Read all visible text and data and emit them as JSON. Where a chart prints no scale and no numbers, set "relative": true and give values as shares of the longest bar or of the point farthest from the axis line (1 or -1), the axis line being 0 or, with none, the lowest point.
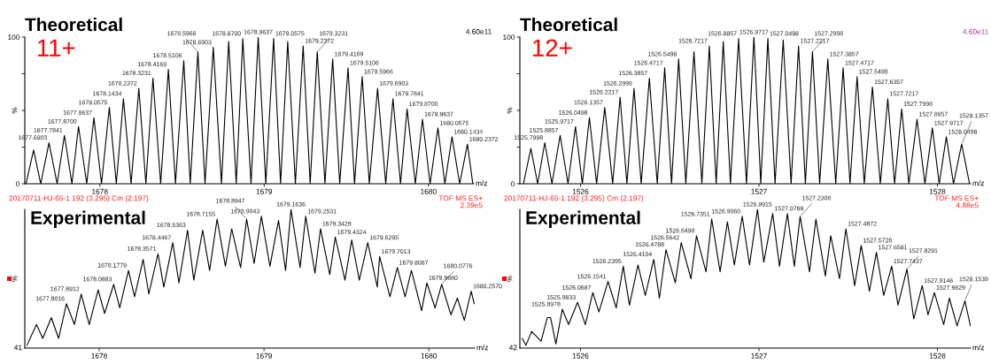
{
  "chart_data": [
    {
      "type": "line",
      "title": "Theoretical",
      "xlabel": "m/z",
      "ylabel": "%",
      "xlim": [
        1677.543,
        1680.276
      ],
      "xticks": [
        1678,
        1679,
        1680
      ],
      "ylim": [
        0,
        100
      ],
      "yticks": [
        0,
        {
          "value": 25,
          "label": null
        },
        {
          "value": 50,
          "label": null
        },
        {
          "value": 75,
          "label": null
        },
        100
      ],
      "annotations": [
        "11+",
        "4.60e11",
        {
          "text": "1677.6903",
          "x": 1677.6903,
          "y": 28
        },
        {
          "text": "1677.7841",
          "x": 1677.7841,
          "y": 33
        },
        {
          "text": "1677.8700",
          "x": 1677.87,
          "y": 39
        },
        {
          "text": "1677.9637",
          "x": 1677.9637,
          "y": 45
        },
        {
          "text": "1678.0575",
          "x": 1678.0575,
          "y": 52
        },
        {
          "text": "1678.1434",
          "x": 1678.1434,
          "y": 58
        },
        {
          "text": "1678.2372",
          "x": 1678.2372,
          "y": 65
        },
        {
          "text": "1678.3231",
          "x": 1678.3231,
          "y": 72
        },
        {
          "text": "1678.4169",
          "x": 1678.4169,
          "y": 78
        },
        {
          "text": "1678.5106",
          "x": 1678.5106,
          "y": 84
        },
        {
          "text": "1678.5966",
          "x": 1678.5966,
          "y": 90
        },
        {
          "text": "1678.6903",
          "x": 1678.6903,
          "y": 93
        },
        {
          "text": "1678.8700",
          "x": 1678.87,
          "y": 99
        },
        {
          "text": "1678.9637",
          "x": 1678.9637,
          "y": 100
        },
        {
          "text": "1679.0575",
          "x": 1679.0575,
          "y": 99
        },
        {
          "text": "1679.2372",
          "x": 1679.2372,
          "y": 94
        },
        {
          "text": "1679.3231",
          "x": 1679.3231,
          "y": 90
        },
        {
          "text": "1679.4169",
          "x": 1679.4169,
          "y": 85
        },
        {
          "text": "1679.5106",
          "x": 1679.5106,
          "y": 79
        },
        {
          "text": "1679.5966",
          "x": 1679.5966,
          "y": 73
        },
        {
          "text": "1679.6903",
          "x": 1679.6903,
          "y": 65
        },
        {
          "text": "1679.7841",
          "x": 1679.7841,
          "y": 58
        },
        {
          "text": "1679.8700",
          "x": 1679.87,
          "y": 51
        },
        {
          "text": "1679.9637",
          "x": 1679.9637,
          "y": 44
        },
        {
          "text": "1680.0575",
          "x": 1680.0575,
          "y": 38
        },
        {
          "text": "1680.1434",
          "x": 1680.1434,
          "y": 32
        },
        {
          "text": "1680.2372",
          "x": 1680.2372,
          "y": 27
        }
      ],
      "series": [
        {
          "color": "#000000",
          "x": [
            1677.55,
            1677.5966,
            1677.64,
            1677.6903,
            1677.74,
            1677.7841,
            1677.83,
            1677.87,
            1677.92,
            1677.9637,
            1678.01,
            1678.0575,
            1678.1,
            1678.1434,
            1678.19,
            1678.2372,
            1678.28,
            1678.3231,
            1678.37,
            1678.4169,
            1678.46,
            1678.5106,
            1678.55,
            1678.5966,
            1678.64,
            1678.6903,
            1678.74,
            1678.7841,
            1678.83,
            1678.87,
            1678.92,
            1678.9637,
            1679.01,
            1679.0575,
            1679.1,
            1679.1434,
            1679.19,
            1679.2372,
            1679.28,
            1679.3231,
            1679.37,
            1679.4169,
            1679.46,
            1679.5106,
            1679.55,
            1679.5966,
            1679.64,
            1679.6903,
            1679.74,
            1679.7841,
            1679.83,
            1679.87,
            1679.92,
            1679.9637,
            1680.01,
            1680.0575,
            1680.1,
            1680.1434,
            1680.19,
            1680.2372,
            1680.27
          ],
          "values": [
            0,
            23,
            0,
            28,
            0,
            33,
            0,
            39,
            0,
            45,
            0,
            52,
            0,
            58,
            0,
            65,
            0,
            72,
            0,
            78,
            0,
            84,
            0,
            90,
            0,
            93,
            0,
            97,
            0,
            99,
            0,
            100,
            0,
            99,
            0,
            97,
            0,
            94,
            0,
            90,
            0,
            85,
            0,
            79,
            0,
            73,
            0,
            65,
            0,
            58,
            0,
            51,
            0,
            44,
            0,
            38,
            0,
            32,
            0,
            27,
            0
          ]
        }
      ]
    },
    {
      "type": "line",
      "title": "Theoretical",
      "xlabel": "m/z",
      "ylabel": "%",
      "xlim": [
        1525.66,
        1528.186
      ],
      "xticks": [
        1526,
        1527,
        1528
      ],
      "ylim": [
        0,
        100
      ],
      "yticks": [
        0,
        {
          "value": 25,
          "label": null
        },
        {
          "value": 50,
          "label": null
        },
        {
          "value": 75,
          "label": null
        },
        100
      ],
      "annotations": [
        "12+",
        "4.60e11",
        {
          "text": "1525.7998",
          "x": 1525.7998,
          "y": 28
        },
        {
          "text": "1525.8857",
          "x": 1525.8857,
          "y": 33
        },
        {
          "text": "1525.9717",
          "x": 1525.9717,
          "y": 39
        },
        {
          "text": "1526.0498",
          "x": 1526.0498,
          "y": 45
        },
        {
          "text": "1526.1357",
          "x": 1526.1357,
          "y": 52
        },
        {
          "text": "1526.2217",
          "x": 1526.2217,
          "y": 59
        },
        {
          "text": "1526.2998",
          "x": 1526.2998,
          "y": 65
        },
        {
          "text": "1526.3857",
          "x": 1526.3857,
          "y": 72
        },
        {
          "text": "1526.4717",
          "x": 1526.4717,
          "y": 79
        },
        {
          "text": "1526.5498",
          "x": 1526.5498,
          "y": 85
        },
        {
          "text": "1526.7217",
          "x": 1526.7217,
          "y": 94
        },
        {
          "text": "1526.8857",
          "x": 1526.8857,
          "y": 99
        },
        {
          "text": "1526.9717",
          "x": 1526.9717,
          "y": 100
        },
        {
          "text": "1527.0498",
          "x": 1527.0498,
          "y": 99
        },
        {
          "text": "1527.2217",
          "x": 1527.2217,
          "y": 94
        },
        {
          "text": "1527.2998",
          "x": 1527.2998,
          "y": 90
        },
        {
          "text": "1527.3857",
          "x": 1527.3857,
          "y": 85
        },
        {
          "text": "1527.4717",
          "x": 1527.4717,
          "y": 79
        },
        {
          "text": "1527.5498",
          "x": 1527.5498,
          "y": 73
        },
        {
          "text": "1527.6357",
          "x": 1527.6357,
          "y": 66
        },
        {
          "text": "1527.7217",
          "x": 1527.7217,
          "y": 58
        },
        {
          "text": "1527.7998",
          "x": 1527.7998,
          "y": 51
        },
        {
          "text": "1527.8857",
          "x": 1527.8857,
          "y": 44
        },
        {
          "text": "1527.9717",
          "x": 1527.9717,
          "y": 38
        },
        {
          "text": "1528.0498",
          "x": 1528.0498,
          "y": 32
        },
        {
          "text": "1528.1357",
          "x": 1528.1357,
          "y": 27
        }
      ],
      "series": [
        {
          "color": "#000000",
          "x": [
            1525.68,
            1525.7217,
            1525.76,
            1525.7998,
            1525.84,
            1525.8857,
            1525.93,
            1525.9717,
            1526.01,
            1526.0498,
            1526.09,
            1526.1357,
            1526.18,
            1526.2217,
            1526.26,
            1526.2998,
            1526.34,
            1526.3857,
            1526.43,
            1526.4717,
            1526.51,
            1526.5498,
            1526.59,
            1526.6357,
            1526.68,
            1526.7217,
            1526.76,
            1526.7998,
            1526.84,
            1526.8857,
            1526.93,
            1526.9717,
            1527.01,
            1527.0498,
            1527.09,
            1527.1357,
            1527.18,
            1527.2217,
            1527.26,
            1527.2998,
            1527.34,
            1527.3857,
            1527.43,
            1527.4717,
            1527.51,
            1527.5498,
            1527.59,
            1527.6357,
            1527.68,
            1527.7217,
            1527.76,
            1527.7998,
            1527.84,
            1527.8857,
            1527.93,
            1527.9717,
            1528.01,
            1528.0498,
            1528.09,
            1528.1357,
            1528.18
          ],
          "values": [
            0,
            24,
            0,
            28,
            0,
            33,
            0,
            39,
            0,
            45,
            0,
            52,
            0,
            59,
            0,
            65,
            0,
            72,
            0,
            79,
            0,
            85,
            0,
            90,
            0,
            94,
            0,
            97,
            0,
            99,
            0,
            100,
            0,
            99,
            0,
            98,
            0,
            94,
            0,
            90,
            0,
            85,
            0,
            79,
            0,
            73,
            0,
            66,
            0,
            58,
            0,
            51,
            0,
            44,
            0,
            38,
            0,
            32,
            0,
            27,
            0
          ]
        }
      ]
    },
    {
      "type": "line",
      "title": "Experimental",
      "xlabel": "m/z",
      "ylabel": "%",
      "relative": true,
      "xlim": [
        1677.549,
        1680.278
      ],
      "xticks": [
        1678,
        1679,
        1680
      ],
      "annotations": [
        "20170711-HJ-65-1 192 (3.295) Cm (2:197)",
        "TOF MS ES+",
        "2.39e5",
        "41",
        {
          "text": "1677.8016",
          "x": 1677.8016,
          "y": 0.32
        },
        {
          "text": "1677.8912",
          "x": 1677.8912,
          "y": 0.39
        },
        {
          "text": "1678.0883",
          "x": 1678.0883,
          "y": 0.46
        },
        {
          "text": "1678.1779",
          "x": 1678.1779,
          "y": 0.56
        },
        {
          "text": "1678.3571",
          "x": 1678.3571,
          "y": 0.68
        },
        {
          "text": "1678.4467",
          "x": 1678.4467,
          "y": 0.76
        },
        {
          "text": "1678.5363",
          "x": 1678.5363,
          "y": 0.85
        },
        {
          "text": "1678.7155",
          "x": 1678.7155,
          "y": 0.93
        },
        {
          "text": "1678.8947",
          "x": 1678.8947,
          "y": 0.93
        },
        {
          "text": "1678.9843",
          "x": 1678.9843,
          "y": 0.95
        },
        {
          "text": "1679.1636",
          "x": 1679.1636,
          "y": 1
        },
        {
          "text": "1679.2531",
          "x": 1679.2531,
          "y": 0.95
        },
        {
          "text": "1679.3428",
          "x": 1679.3428,
          "y": 0.86
        },
        {
          "text": "1679.4324",
          "x": 1679.4324,
          "y": 0.8
        },
        {
          "text": "1679.6295",
          "x": 1679.6295,
          "y": 0.76
        },
        {
          "text": "1679.7013",
          "x": 1679.7013,
          "y": 0.66
        },
        {
          "text": "1679.8087",
          "x": 1679.8087,
          "y": 0.58
        },
        {
          "text": "1679.9880",
          "x": 1679.988,
          "y": 0.47
        },
        {
          "text": "1680.0776",
          "x": 1680.0776,
          "y": 0.46
        },
        {
          "text": "1680.2570",
          "x": 1680.257,
          "y": 0.41
        }
      ],
      "series": [
        {
          "color": "#000000",
          "x": [
            1677.562,
            1677.62,
            1677.658,
            1677.71,
            1677.754,
            1677.8016,
            1677.85,
            1677.8912,
            1677.94,
            1677.994,
            1678.033,
            1678.0883,
            1678.125,
            1678.1779,
            1678.215,
            1678.267,
            1678.301,
            1678.3571,
            1678.392,
            1678.4467,
            1678.484,
            1678.5363,
            1678.574,
            1678.628,
            1678.67,
            1678.7155,
            1678.766,
            1678.804,
            1678.858,
            1678.8947,
            1678.94,
            1678.9843,
            1679.036,
            1679.088,
            1679.131,
            1679.1636,
            1679.219,
            1679.2531,
            1679.309,
            1679.3428,
            1679.399,
            1679.4324,
            1679.491,
            1679.532,
            1679.578,
            1679.6295,
            1679.687,
            1679.7013,
            1679.764,
            1679.8087,
            1679.856,
            1679.894,
            1679.956,
            1679.988,
            1680.038,
            1680.0776,
            1680.134,
            1680.173,
            1680.215,
            1680.257,
            1680.275
          ],
          "values": [
            0.02,
            0.17,
            0.07,
            0.22,
            0.07,
            0.32,
            0.17,
            0.39,
            0.17,
            0.42,
            0.25,
            0.46,
            0.29,
            0.56,
            0.37,
            0.64,
            0.39,
            0.68,
            0.44,
            0.76,
            0.47,
            0.85,
            0.49,
            0.85,
            0.56,
            0.93,
            0.59,
            0.86,
            0.58,
            0.93,
            0.61,
            0.95,
            0.59,
            0.92,
            0.56,
            1,
            0.58,
            0.95,
            0.54,
            0.86,
            0.53,
            0.8,
            0.49,
            0.78,
            0.49,
            0.76,
            0.44,
            0.66,
            0.37,
            0.58,
            0.37,
            0.56,
            0.27,
            0.47,
            0.29,
            0.46,
            0.24,
            0.36,
            0.2,
            0.41,
            0.32
          ]
        }
      ]
    },
    {
      "type": "line",
      "title": "Experimental",
      "xlabel": "m/z",
      "ylabel": "%",
      "relative": true,
      "xlim": [
        1525.66,
        1528.186
      ],
      "xticks": [
        1526,
        1527,
        1528
      ],
      "annotations": [
        "20170711-HJ-65-1 192 (3.295) Cm (2:197)",
        "TOF MS ES+",
        "4.88e5",
        "42",
        {
          "text": "1525.8978",
          "x": 1525.8978,
          "y": 0.28
        },
        {
          "text": "1525.9833",
          "x": 1525.9833,
          "y": 0.33
        },
        {
          "text": "1526.0687",
          "x": 1526.0687,
          "y": 0.4
        },
        {
          "text": "1526.1541",
          "x": 1526.1541,
          "y": 0.48
        },
        {
          "text": "1526.2395",
          "x": 1526.2395,
          "y": 0.59
        },
        {
          "text": "1526.4104",
          "x": 1526.4104,
          "y": 0.64
        },
        {
          "text": "1526.4788",
          "x": 1526.4788,
          "y": 0.71
        },
        {
          "text": "1526.5642",
          "x": 1526.5642,
          "y": 0.76
        },
        {
          "text": "1526.6498",
          "x": 1526.6498,
          "y": 0.81
        },
        {
          "text": "1526.7351",
          "x": 1526.7351,
          "y": 0.93
        },
        {
          "text": "1526.9060",
          "x": 1526.906,
          "y": 0.95
        },
        {
          "text": "1526.9915",
          "x": 1526.9915,
          "y": 1
        },
        {
          "text": "1527.0769",
          "x": 1527.0769,
          "y": 0.97
        },
        {
          "text": "1527.2308",
          "x": 1527.2308,
          "y": 0.95
        },
        {
          "text": "1527.4872",
          "x": 1527.4872,
          "y": 0.86
        },
        {
          "text": "1527.5728",
          "x": 1527.5728,
          "y": 0.74
        },
        {
          "text": "1527.6581",
          "x": 1527.6581,
          "y": 0.69
        },
        {
          "text": "1527.7437",
          "x": 1527.7437,
          "y": 0.59
        },
        {
          "text": "1527.8291",
          "x": 1527.8291,
          "y": 0.57
        },
        {
          "text": "1527.9146",
          "x": 1527.9146,
          "y": 0.45
        },
        {
          "text": "1527.9829",
          "x": 1527.9829,
          "y": 0.4
        },
        {
          "text": "1528.1539",
          "x": 1528.1539,
          "y": 0.34
        }
      ],
      "series": [
        {
          "color": "#000000",
          "x": [
            1525.673,
            1525.694,
            1525.726,
            1525.779,
            1525.814,
            1525.832,
            1525.862,
            1525.8978,
            1525.933,
            1525.9833,
            1526.027,
            1526.0687,
            1526.103,
            1526.1541,
            1526.2,
            1526.2395,
            1526.274,
            1526.322,
            1526.363,
            1526.4104,
            1526.442,
            1526.4788,
            1526.531,
            1526.5642,
            1526.619,
            1526.6498,
            1526.703,
            1526.7351,
            1526.782,
            1526.823,
            1526.862,
            1526.906,
            1526.947,
            1526.9915,
            1527.027,
            1527.0769,
            1527.115,
            1527.159,
            1527.198,
            1527.2308,
            1527.283,
            1527.319,
            1527.372,
            1527.402,
            1527.451,
            1527.4872,
            1527.536,
            1527.5728,
            1527.619,
            1527.6581,
            1527.699,
            1527.7437,
            1527.779,
            1527.8291,
            1527.867,
            1527.9146,
            1527.947,
            1527.9829,
            1528.035,
            1528.067,
            1528.11,
            1528.1539,
            1528.185
          ],
          "values": [
            0.07,
            0.02,
            0.12,
            0.05,
            0.22,
            0.22,
            0.03,
            0.28,
            0.17,
            0.33,
            0.17,
            0.4,
            0.26,
            0.48,
            0.29,
            0.59,
            0.31,
            0.6,
            0.38,
            0.64,
            0.36,
            0.71,
            0.47,
            0.76,
            0.5,
            0.81,
            0.55,
            0.93,
            0.55,
            0.91,
            0.6,
            0.95,
            0.6,
            1,
            0.62,
            0.97,
            0.59,
            0.97,
            0.59,
            0.95,
            0.55,
            0.93,
            0.52,
            0.81,
            0.5,
            0.86,
            0.45,
            0.74,
            0.41,
            0.69,
            0.38,
            0.59,
            0.31,
            0.57,
            0.21,
            0.45,
            0.24,
            0.4,
            0.17,
            0.36,
            0.16,
            0.34,
            0.16
          ]
        }
      ]
    }
  ]
}
